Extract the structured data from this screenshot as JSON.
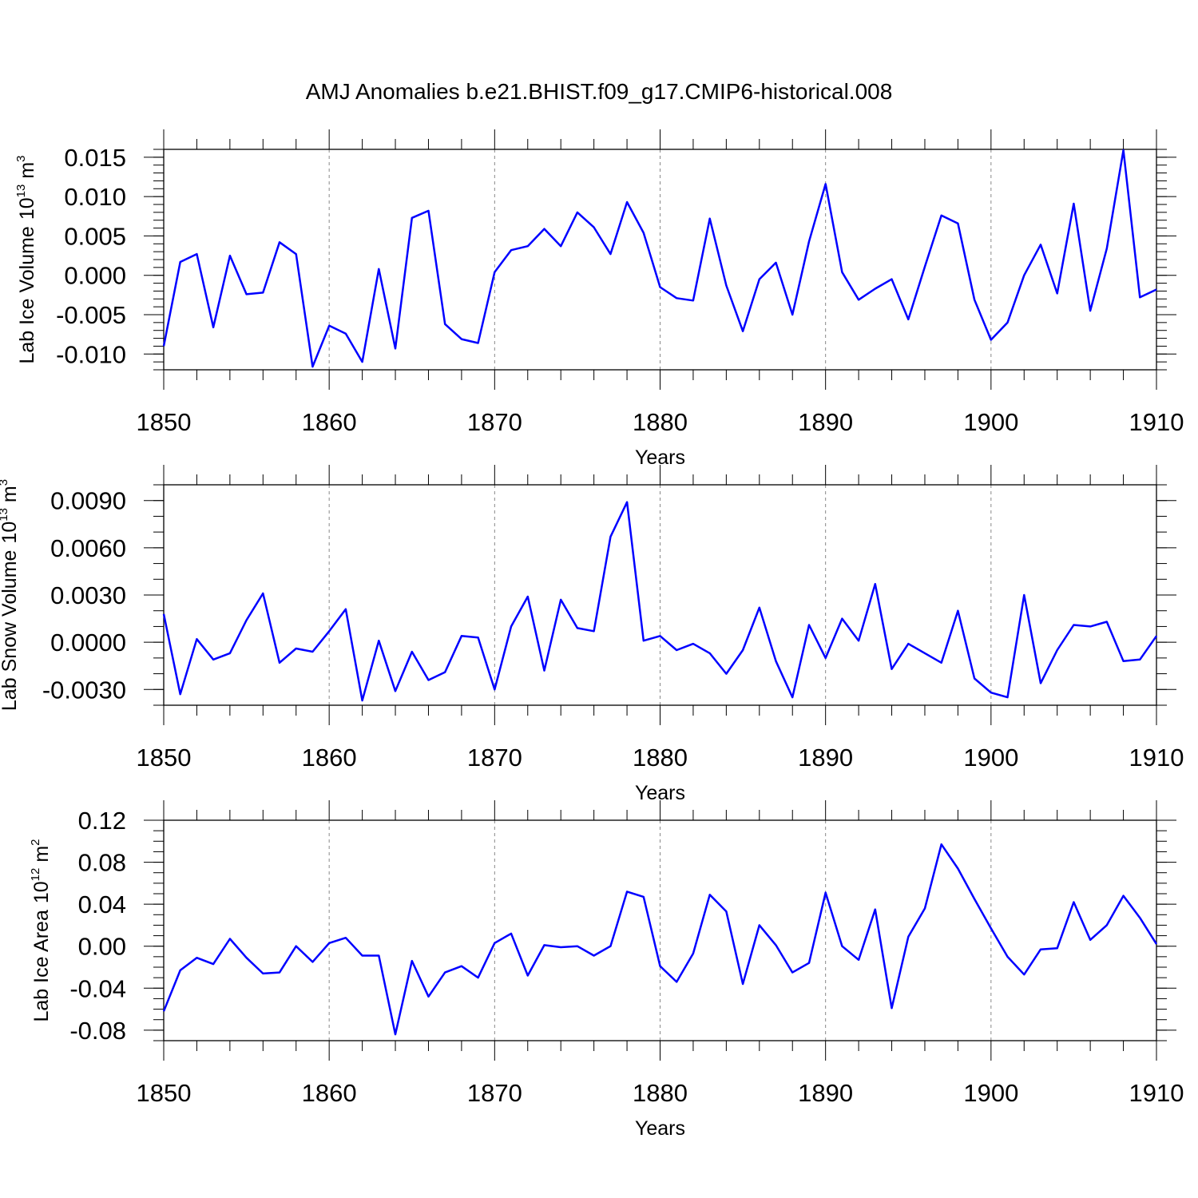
{
  "title": "AMJ Anomalies b.e21.BHIST.f09_g17.CMIP6-historical.008",
  "chart_data": [
    {
      "type": "line",
      "ylabel": "Lab Ice Volume",
      "units_base": "10",
      "units_exp": "13",
      "units_unit": "m",
      "units_unit_exp": "3",
      "xlabel": "Years",
      "xlim": [
        1850,
        1910
      ],
      "ylim": [
        -0.012,
        0.016
      ],
      "x_ticks": [
        1850,
        1860,
        1870,
        1880,
        1890,
        1900,
        1910
      ],
      "x_tick_labels": [
        "1850",
        "1860",
        "1870",
        "1880",
        "1890",
        "1900",
        "1910"
      ],
      "y_ticks": [
        -0.01,
        -0.005,
        0.0,
        0.005,
        0.01,
        0.015
      ],
      "y_tick_labels": [
        "-0.010",
        "-0.005",
        "0.000",
        "0.005",
        "0.010",
        "0.015"
      ],
      "y_minor_step": 0.001,
      "grid_x": [
        1860,
        1870,
        1880,
        1890,
        1900
      ],
      "color": "#0000ff",
      "x_start": 1850,
      "values": [
        -0.009,
        0.0017,
        0.0027,
        -0.0066,
        0.0025,
        -0.0024,
        -0.0022,
        0.0042,
        0.0027,
        -0.0116,
        -0.0064,
        -0.0074,
        -0.011,
        0.0008,
        -0.0093,
        0.0073,
        0.0082,
        -0.0062,
        -0.0081,
        -0.0086,
        0.0004,
        0.0032,
        0.0037,
        0.0059,
        0.0037,
        0.008,
        0.0061,
        0.0027,
        0.0093,
        0.0054,
        -0.0015,
        -0.0029,
        -0.0032,
        0.0072,
        -0.0013,
        -0.0071,
        -0.0005,
        0.0016,
        -0.005,
        0.0043,
        0.0116,
        0.0004,
        -0.0031,
        -0.0017,
        -0.0005,
        -0.0056,
        0.0011,
        0.0076,
        0.0066,
        -0.0031,
        -0.0082,
        -0.006,
        0.0,
        0.0039,
        -0.0023,
        0.0091,
        -0.0045,
        0.0034,
        0.0159,
        -0.0028,
        -0.0018
      ]
    },
    {
      "type": "line",
      "ylabel": "Lab Snow Volume",
      "units_base": "10",
      "units_exp": "13",
      "units_unit": "m",
      "units_unit_exp": "3",
      "xlabel": "Years",
      "xlim": [
        1850,
        1910
      ],
      "ylim": [
        -0.004,
        0.01
      ],
      "x_ticks": [
        1850,
        1860,
        1870,
        1880,
        1890,
        1900,
        1910
      ],
      "x_tick_labels": [
        "1850",
        "1860",
        "1870",
        "1880",
        "1890",
        "1900",
        "1910"
      ],
      "y_ticks": [
        -0.003,
        0.0,
        0.003,
        0.006,
        0.009
      ],
      "y_tick_labels": [
        "-0.0030",
        "0.0000",
        "0.0030",
        "0.0060",
        "0.0090"
      ],
      "y_minor_step": 0.001,
      "grid_x": [
        1860,
        1870,
        1880,
        1890,
        1900
      ],
      "color": "#0000ff",
      "x_start": 1850,
      "values": [
        0.0018,
        -0.0033,
        0.0002,
        -0.0011,
        -0.0007,
        0.0014,
        0.0031,
        -0.0013,
        -0.0004,
        -0.0006,
        0.0007,
        0.0021,
        -0.0037,
        0.0001,
        -0.0031,
        -0.0006,
        -0.0024,
        -0.0019,
        0.0004,
        0.0003,
        -0.003,
        0.001,
        0.0029,
        -0.0018,
        0.0027,
        0.0009,
        0.0007,
        0.0067,
        0.0089,
        0.0001,
        0.0004,
        -0.0005,
        -0.0001,
        -0.0007,
        -0.002,
        -0.0005,
        0.0022,
        -0.0012,
        -0.0035,
        0.0011,
        -0.001,
        0.0015,
        0.0001,
        0.0037,
        -0.0017,
        -0.0001,
        -0.0007,
        -0.0013,
        0.002,
        -0.0023,
        -0.0032,
        -0.0035,
        0.003,
        -0.0026,
        -0.0005,
        0.0011,
        0.001,
        0.0013,
        -0.0012,
        -0.0011,
        0.0004
      ]
    },
    {
      "type": "line",
      "ylabel": "Lab Ice Area",
      "units_base": "10",
      "units_exp": "12",
      "units_unit": "m",
      "units_unit_exp": "2",
      "xlabel": "Years",
      "xlim": [
        1850,
        1910
      ],
      "ylim": [
        -0.09,
        0.12
      ],
      "x_ticks": [
        1850,
        1860,
        1870,
        1880,
        1890,
        1900,
        1910
      ],
      "x_tick_labels": [
        "1850",
        "1860",
        "1870",
        "1880",
        "1890",
        "1900",
        "1910"
      ],
      "y_ticks": [
        -0.08,
        -0.04,
        0.0,
        0.04,
        0.08,
        0.12
      ],
      "y_tick_labels": [
        "-0.08",
        "-0.04",
        "0.00",
        "0.04",
        "0.08",
        "0.12"
      ],
      "y_minor_step": 0.01,
      "grid_x": [
        1860,
        1870,
        1880,
        1890,
        1900
      ],
      "color": "#0000ff",
      "x_start": 1850,
      "values": [
        -0.062,
        -0.023,
        -0.011,
        -0.017,
        0.007,
        -0.011,
        -0.026,
        -0.025,
        0.0,
        -0.015,
        0.003,
        0.008,
        -0.009,
        -0.009,
        -0.084,
        -0.014,
        -0.048,
        -0.025,
        -0.019,
        -0.03,
        0.003,
        0.012,
        -0.028,
        0.001,
        -0.001,
        0.0,
        -0.009,
        0.0,
        0.052,
        0.047,
        -0.019,
        -0.034,
        -0.007,
        0.049,
        0.033,
        -0.036,
        0.02,
        0.001,
        -0.025,
        -0.016,
        0.051,
        0.0,
        -0.013,
        0.035,
        -0.059,
        0.009,
        0.036,
        0.097,
        0.074,
        0.045,
        0.017,
        -0.01,
        -0.027,
        -0.003,
        -0.002,
        0.042,
        0.006,
        0.02,
        0.048,
        0.027,
        0.002
      ]
    }
  ]
}
